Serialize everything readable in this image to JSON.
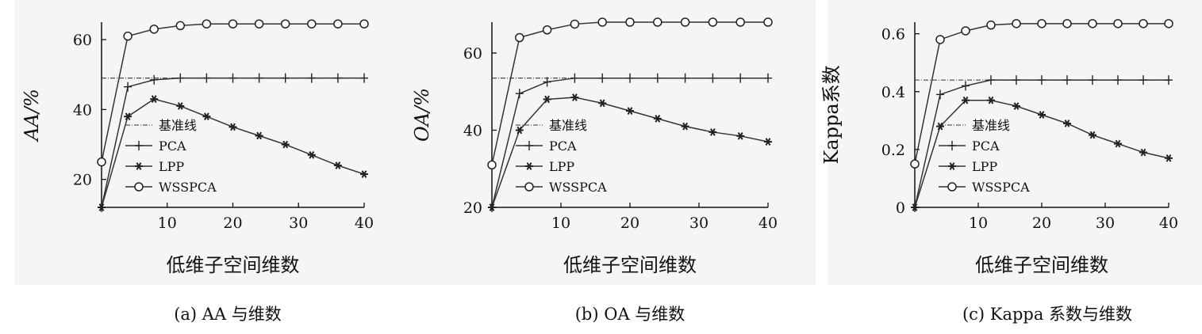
{
  "chart_data": [
    {
      "type": "line",
      "ylabel": "AA/%",
      "ylabel_italic": true,
      "xlabel": "低维子空间维数",
      "caption": "(a) AA 与维数",
      "xlim": [
        0,
        40
      ],
      "ylim": [
        12,
        65
      ],
      "xticks": [
        10,
        20,
        30,
        40
      ],
      "yticks": [
        20,
        40,
        60
      ],
      "ytick_labels": [
        "20",
        "40",
        "60"
      ],
      "legend_position": "center-left",
      "series": [
        {
          "name": "基准线",
          "style": "dashdot",
          "x": [
            0,
            40
          ],
          "y": [
            49,
            49
          ]
        },
        {
          "name": "PCA",
          "style": "plus",
          "x": [
            0,
            4,
            8,
            12,
            16,
            20,
            24,
            28,
            32,
            36,
            40
          ],
          "y": [
            12,
            46.5,
            48.5,
            49,
            49,
            49,
            49,
            49,
            49,
            49,
            49
          ]
        },
        {
          "name": "LPP",
          "style": "star",
          "x": [
            0,
            4,
            8,
            12,
            16,
            20,
            24,
            28,
            32,
            36,
            40
          ],
          "y": [
            12,
            38,
            43,
            41,
            38,
            35,
            32.5,
            30,
            27,
            24,
            21.5
          ]
        },
        {
          "name": "WSSPCA",
          "style": "circle",
          "x": [
            0,
            4,
            8,
            12,
            16,
            20,
            24,
            28,
            32,
            36,
            40
          ],
          "y": [
            25,
            61,
            63,
            64,
            64.5,
            64.5,
            64.5,
            64.5,
            64.5,
            64.5,
            64.5
          ]
        }
      ]
    },
    {
      "type": "line",
      "ylabel": "OA/%",
      "ylabel_italic": true,
      "xlabel": "低维子空间维数",
      "caption": "(b) OA 与维数",
      "xlim": [
        0,
        40
      ],
      "ylim": [
        20,
        68
      ],
      "xticks": [
        10,
        20,
        30,
        40
      ],
      "yticks": [
        20,
        40,
        60
      ],
      "ytick_labels": [
        "20",
        "40",
        "60"
      ],
      "legend_position": "center-left",
      "series": [
        {
          "name": "基准线",
          "style": "dashdot",
          "x": [
            0,
            40
          ],
          "y": [
            53.5,
            53.5
          ]
        },
        {
          "name": "PCA",
          "style": "plus",
          "x": [
            0,
            4,
            8,
            12,
            16,
            20,
            24,
            28,
            32,
            36,
            40
          ],
          "y": [
            20,
            49.5,
            52.5,
            53.5,
            53.5,
            53.5,
            53.5,
            53.5,
            53.5,
            53.5,
            53.5
          ]
        },
        {
          "name": "LPP",
          "style": "star",
          "x": [
            0,
            4,
            8,
            12,
            16,
            20,
            24,
            28,
            32,
            36,
            40
          ],
          "y": [
            20,
            40,
            48,
            48.5,
            47,
            45,
            43,
            41,
            39.5,
            38.5,
            37
          ]
        },
        {
          "name": "WSSPCA",
          "style": "circle",
          "x": [
            0,
            4,
            8,
            12,
            16,
            20,
            24,
            28,
            32,
            36,
            40
          ],
          "y": [
            31,
            64,
            66,
            67.5,
            68,
            68,
            68,
            68,
            68,
            68,
            68
          ]
        }
      ]
    },
    {
      "type": "line",
      "ylabel": "Kappa系数",
      "ylabel_italic": false,
      "xlabel": "低维子空间维数",
      "caption": "(c) Kappa 系数与维数",
      "xlim": [
        0,
        40
      ],
      "ylim": [
        0,
        0.64
      ],
      "xticks": [
        10,
        20,
        30,
        40
      ],
      "yticks": [
        0,
        0.2,
        0.4,
        0.6
      ],
      "ytick_labels": [
        "0",
        "0.2",
        "0.4",
        "0.6"
      ],
      "legend_position": "center-left",
      "series": [
        {
          "name": "基准线",
          "style": "dashdot",
          "x": [
            0,
            40
          ],
          "y": [
            0.44,
            0.44
          ]
        },
        {
          "name": "PCA",
          "style": "plus",
          "x": [
            0,
            4,
            8,
            12,
            16,
            20,
            24,
            28,
            32,
            36,
            40
          ],
          "y": [
            0,
            0.39,
            0.42,
            0.44,
            0.44,
            0.44,
            0.44,
            0.44,
            0.44,
            0.44,
            0.44
          ]
        },
        {
          "name": "LPP",
          "style": "star",
          "x": [
            0,
            4,
            8,
            12,
            16,
            20,
            24,
            28,
            32,
            36,
            40
          ],
          "y": [
            0,
            0.28,
            0.37,
            0.37,
            0.35,
            0.32,
            0.29,
            0.25,
            0.22,
            0.19,
            0.17
          ]
        },
        {
          "name": "WSSPCA",
          "style": "circle",
          "x": [
            0,
            4,
            8,
            12,
            16,
            20,
            24,
            28,
            32,
            36,
            40
          ],
          "y": [
            0.15,
            0.58,
            0.61,
            0.63,
            0.635,
            0.635,
            0.635,
            0.635,
            0.635,
            0.635,
            0.635
          ]
        }
      ]
    }
  ]
}
